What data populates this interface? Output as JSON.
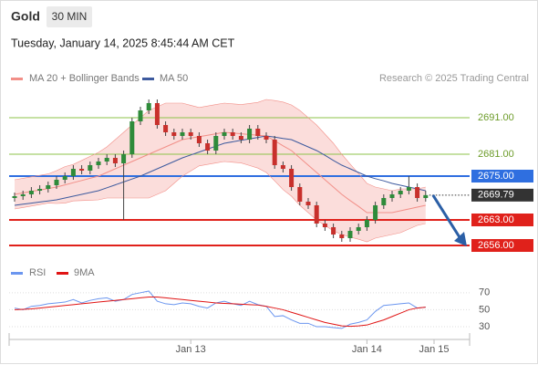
{
  "header": {
    "symbol": "Gold",
    "timeframe": "30 MIN",
    "timestamp": "Tuesday, January 14, 2025 8:45:44 AM CET",
    "copyright": "Research © 2025 Trading Central"
  },
  "chart_data": [
    {
      "type": "candlestick",
      "open": [
        2669,
        2669.5,
        2670,
        2671,
        2671.5,
        2672.5,
        2674,
        2675,
        2677,
        2676.5,
        2678,
        2679,
        2680,
        2678.5,
        2681,
        2690,
        2693,
        2695,
        2689,
        2687,
        2686,
        2687,
        2686,
        2684,
        2682,
        2686,
        2687,
        2686,
        2685,
        2688,
        2686,
        2685,
        2678,
        2677,
        2672,
        2668,
        2667,
        2662,
        2661,
        2659,
        2658,
        2660,
        2661,
        2663,
        2667,
        2669,
        2670,
        2671,
        2672,
        2669
      ],
      "high": [
        2670.5,
        2671,
        2672,
        2672.5,
        2673.5,
        2675,
        2676,
        2678,
        2678,
        2679,
        2680,
        2681,
        2681,
        2682,
        2691,
        2694,
        2696,
        2696,
        2690,
        2688,
        2688,
        2688,
        2687,
        2685,
        2687,
        2688,
        2688,
        2687,
        2689,
        2689,
        2687,
        2686,
        2679,
        2678,
        2673,
        2669,
        2668,
        2663,
        2662,
        2660,
        2661,
        2662,
        2664,
        2668,
        2670,
        2671,
        2672,
        2675,
        2673,
        2671
      ],
      "low": [
        2668,
        2668.5,
        2669,
        2670,
        2670.5,
        2671.5,
        2673,
        2674,
        2675.5,
        2675.5,
        2677,
        2678,
        2677.5,
        2663,
        2680,
        2689,
        2692,
        2688,
        2686,
        2685,
        2685,
        2685,
        2683,
        2681,
        2681,
        2685,
        2685,
        2684,
        2684,
        2685,
        2684,
        2677,
        2676,
        2671,
        2667,
        2666,
        2661,
        2660,
        2658,
        2657,
        2657,
        2659,
        2660,
        2662,
        2666,
        2668,
        2669,
        2670,
        2668,
        2668
      ],
      "close": [
        2669.5,
        2670,
        2671,
        2671.5,
        2672.5,
        2674,
        2675,
        2677,
        2676.5,
        2678,
        2679,
        2680,
        2678.5,
        2681,
        2690,
        2693,
        2695,
        2689,
        2687,
        2686,
        2687,
        2686,
        2684,
        2682,
        2686,
        2687,
        2686,
        2685,
        2688,
        2686,
        2685,
        2678,
        2677,
        2672,
        2668,
        2667,
        2662,
        2661,
        2659,
        2658,
        2660,
        2661,
        2663,
        2667,
        2669,
        2670,
        2671,
        2672,
        2669,
        2669.79
      ],
      "up_color": "#2e8b3a",
      "down_color": "#c8302c",
      "series": [
        {
          "name": "MA 20 + Bollinger Bands",
          "color": "#f28f88",
          "values": [
            2670,
            2670.4,
            2670.8,
            2671.2,
            2671.6,
            2672,
            2672.6,
            2673.2,
            2673.8,
            2674.4,
            2675,
            2676,
            2677,
            2678,
            2679,
            2680,
            2681,
            2682,
            2683,
            2684,
            2685,
            2685.4,
            2685.8,
            2686.2,
            2686.6,
            2687,
            2686.8,
            2686.6,
            2686.4,
            2686.2,
            2686,
            2684.7,
            2683.3,
            2682,
            2680,
            2678,
            2676,
            2674,
            2672,
            2670,
            2668.3,
            2666.7,
            2665,
            2665,
            2665,
            2665,
            2665.5,
            2666,
            2666.5,
            2667
          ],
          "upper": [
            2674,
            2674.4,
            2674.8,
            2675.2,
            2675.6,
            2676.5,
            2677.6,
            2678.2,
            2679.3,
            2680.4,
            2681.5,
            2683,
            2685,
            2687,
            2689,
            2691,
            2693,
            2694,
            2695,
            2695,
            2695,
            2694.4,
            2693.8,
            2694.2,
            2694.6,
            2695,
            2694.8,
            2694.6,
            2694.9,
            2695.2,
            2696,
            2695.7,
            2695.3,
            2694.5,
            2693,
            2691,
            2689,
            2686.5,
            2684,
            2681,
            2678.3,
            2675.7,
            2673,
            2672,
            2671.5,
            2671,
            2671.5,
            2671.5,
            2671.5,
            2672
          ],
          "lower": [
            2666,
            2666.4,
            2666.8,
            2667.2,
            2667.6,
            2667.5,
            2667.6,
            2668.2,
            2668.3,
            2668.4,
            2668.5,
            2669,
            2669,
            2669,
            2669,
            2669,
            2669,
            2670,
            2671,
            2673,
            2675,
            2676.4,
            2677.8,
            2678.2,
            2678.6,
            2679,
            2678.8,
            2678.6,
            2677.9,
            2677.2,
            2676,
            2673.7,
            2671.3,
            2669.5,
            2667,
            2665,
            2663,
            2661.5,
            2660,
            2659,
            2658.3,
            2657.7,
            2657,
            2658,
            2658.5,
            2659,
            2659.5,
            2660.5,
            2661.5,
            2662
          ]
        },
        {
          "name": "MA 50",
          "color": "#3d5a9e",
          "values": [
            2667,
            2667.3,
            2667.6,
            2667.9,
            2668.2,
            2668.5,
            2669,
            2669.5,
            2670,
            2670.5,
            2671,
            2671.8,
            2672.6,
            2673.4,
            2674.2,
            2675,
            2676,
            2677,
            2678,
            2679,
            2680,
            2680.8,
            2681.6,
            2682.4,
            2683.2,
            2684,
            2684.4,
            2684.8,
            2685.2,
            2685.6,
            2686,
            2685.7,
            2685.3,
            2685,
            2684,
            2683,
            2682,
            2680.7,
            2679.3,
            2678,
            2677,
            2676,
            2675,
            2674.3,
            2673.7,
            2673,
            2672.5,
            2672,
            2671.5,
            2671
          ]
        }
      ],
      "ylim": [
        2652,
        2698
      ],
      "levels": [
        {
          "value": 2691,
          "label": "2691.00",
          "color": "#8cc34a",
          "boxed": false
        },
        {
          "value": 2681,
          "label": "2681.00",
          "color": "#8cc34a",
          "boxed": false
        },
        {
          "value": 2675,
          "label": "2675.00",
          "color": "#2f6fe0",
          "boxed": true
        },
        {
          "value": 2663,
          "label": "2663.00",
          "color": "#e0211b",
          "boxed": true
        },
        {
          "value": 2656,
          "label": "2656.00",
          "color": "#e0211b",
          "boxed": true
        }
      ],
      "current_price": 2669.79,
      "x_labels": [
        {
          "label": "Jan 13",
          "index": 21
        },
        {
          "label": "Jan 14",
          "index": 42
        },
        {
          "label": "Jan 15",
          "index": 50
        }
      ]
    },
    {
      "type": "line",
      "series": [
        {
          "name": "RSI",
          "color": "#6b96ef",
          "values": [
            52,
            50,
            54,
            55,
            57,
            58,
            59,
            62,
            58,
            61,
            63,
            64,
            60,
            62,
            68,
            70,
            72,
            60,
            57,
            56,
            58,
            57,
            54,
            52,
            58,
            60,
            57,
            55,
            60,
            56,
            54,
            42,
            43,
            38,
            34,
            34,
            30,
            30,
            29,
            28,
            33,
            35,
            38,
            48,
            55,
            56,
            57,
            58,
            52,
            53
          ]
        },
        {
          "name": "9MA",
          "color": "#e01414",
          "values": [
            50,
            50.5,
            51,
            52,
            53,
            54,
            55,
            56,
            57,
            58,
            59,
            60,
            61,
            62,
            63,
            64,
            65,
            65,
            64,
            63,
            62,
            61,
            60,
            59,
            58,
            57.5,
            57,
            56.5,
            56,
            55.5,
            54,
            52,
            50,
            47,
            44,
            41,
            38,
            35,
            33,
            31,
            30.5,
            31,
            32,
            35,
            38,
            42,
            46,
            50,
            52,
            53
          ]
        }
      ],
      "ylim": [
        15,
        87
      ],
      "yticks": [
        30,
        50,
        70
      ]
    }
  ]
}
